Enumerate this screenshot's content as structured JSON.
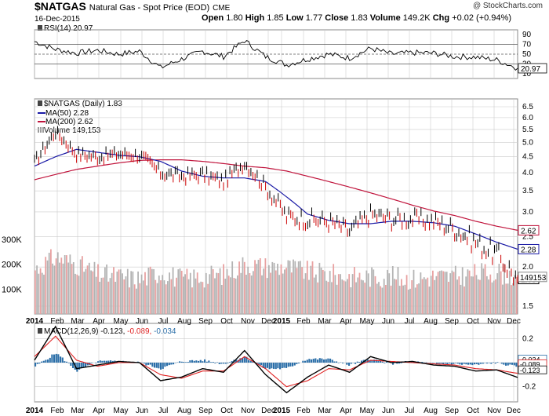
{
  "header": {
    "symbol": "$NATGAS",
    "name": "Natural Gas - Spot Price (EOD)",
    "exchange": "CME",
    "date": "16-Dec-2015",
    "copyright": "@ StockCharts.com",
    "open_label": "Open",
    "open": "1.80",
    "high_label": "High",
    "high": "1.85",
    "low_label": "Low",
    "low": "1.77",
    "close_label": "Close",
    "close": "1.83",
    "volume_label": "Volume",
    "volume": "149.2K",
    "chg_label": "Chg",
    "chg": "+0.02 (+0.94%)"
  },
  "rsi_panel": {
    "label": "RSI(14) 20.97",
    "current": "20.97",
    "ticks": [
      "90",
      "70",
      "50",
      "30",
      "10"
    ]
  },
  "price_panel": {
    "legend_title": "$NATGAS (Daily) 1.83",
    "ma50_label": "MA(50) 2.28",
    "ma200_label": "MA(200) 2.62",
    "volume_label": "Volume 149,153",
    "ticks": [
      "6.5",
      "6.0",
      "5.5",
      "5.0",
      "4.5",
      "4.0",
      "3.5",
      "3.0",
      "2.5",
      "2.0",
      "1.5"
    ],
    "volume_ticks": [
      "300K",
      "200K",
      "100K"
    ],
    "badges": {
      "ma200": "2.62",
      "ma50": "2.28",
      "volume": "149153",
      "close": "1.83"
    }
  },
  "macd_panel": {
    "label_prefix": "MACD(12,26,9)",
    "macd_value": "-0.123,",
    "signal_value": "-0.089,",
    "hist_value": "-0.034",
    "ticks": [
      "0.2",
      "0.0",
      "-0.2"
    ],
    "badges": {
      "hist": "-0.034",
      "signal": "-0.089",
      "macd": "-0.123"
    }
  },
  "x_axis_labels": [
    "2014",
    "Feb",
    "Mar",
    "Apr",
    "May",
    "Jun",
    "Jul",
    "Aug",
    "Sep",
    "Oct",
    "Nov",
    "Dec",
    "2015",
    "Feb",
    "Mar",
    "Apr",
    "May",
    "Jun",
    "Jul",
    "Aug",
    "Sep",
    "Oct",
    "Nov",
    "Dec"
  ],
  "colors": {
    "up": "#000000",
    "down": "#cc0000",
    "ma50": "#1a1aa6",
    "ma200": "#c0143c",
    "volume_up": "#b3b3b3",
    "volume_down": "#e8a0a0",
    "macd_line": "#000000",
    "signal_line": "#e02020",
    "histogram": "#2a6ea8",
    "grid": "#cccccc",
    "rsi_fill_low": "#a84a8c"
  },
  "chart_data": [
    {
      "type": "line",
      "title": "RSI(14) 20.97",
      "x_range": [
        "2014-01-02",
        "2015-12-16"
      ],
      "ylim": [
        0,
        100
      ],
      "reference_lines": [
        70,
        50,
        30
      ],
      "x": [
        "2014-01",
        "2014-02",
        "2014-03",
        "2014-04",
        "2014-05",
        "2014-06",
        "2014-07",
        "2014-08",
        "2014-09",
        "2014-10",
        "2014-11",
        "2014-12",
        "2015-01",
        "2015-02",
        "2015-03",
        "2015-04",
        "2015-05",
        "2015-06",
        "2015-07",
        "2015-08",
        "2015-09",
        "2015-10",
        "2015-11",
        "2015-12-16"
      ],
      "series": [
        {
          "name": "RSI(14)",
          "values": [
            76,
            60,
            52,
            58,
            50,
            56,
            22,
            40,
            56,
            45,
            78,
            45,
            28,
            40,
            50,
            42,
            62,
            50,
            53,
            52,
            45,
            44,
            38,
            21
          ]
        }
      ]
    },
    {
      "type": "line",
      "title": "$NATGAS (Daily) 1.83",
      "x_range": [
        "2014-01-02",
        "2015-12-16"
      ],
      "ylim": [
        1.5,
        6.5
      ],
      "y_scale": "log",
      "x": [
        "2014-01",
        "2014-02",
        "2014-03",
        "2014-04",
        "2014-05",
        "2014-06",
        "2014-07",
        "2014-08",
        "2014-09",
        "2014-10",
        "2014-11",
        "2014-12",
        "2015-01",
        "2015-02",
        "2015-03",
        "2015-04",
        "2015-05",
        "2015-06",
        "2015-07",
        "2015-08",
        "2015-09",
        "2015-10",
        "2015-11",
        "2015-12-16"
      ],
      "series": [
        {
          "name": "$NATGAS",
          "values": [
            4.3,
            5.4,
            4.6,
            4.5,
            4.6,
            4.55,
            4.0,
            3.9,
            3.95,
            3.75,
            4.3,
            3.6,
            2.9,
            2.85,
            2.8,
            2.6,
            2.95,
            2.85,
            2.85,
            2.8,
            2.65,
            2.4,
            2.2,
            1.83
          ]
        },
        {
          "name": "MA(50) 2.28",
          "values": [
            4.2,
            4.5,
            4.75,
            4.65,
            4.55,
            4.5,
            4.35,
            4.05,
            3.9,
            3.85,
            3.85,
            3.75,
            3.35,
            2.95,
            2.82,
            2.75,
            2.75,
            2.8,
            2.8,
            2.77,
            2.7,
            2.55,
            2.4,
            2.28
          ]
        },
        {
          "name": "MA(200) 2.62",
          "values": [
            3.8,
            3.95,
            4.1,
            4.2,
            4.3,
            4.38,
            4.4,
            4.4,
            4.35,
            4.28,
            4.2,
            4.15,
            4.05,
            3.9,
            3.75,
            3.6,
            3.45,
            3.3,
            3.15,
            3.02,
            2.92,
            2.8,
            2.7,
            2.62
          ]
        }
      ]
    },
    {
      "type": "bar",
      "title": "Volume 149,153",
      "ylim": [
        0,
        300000
      ],
      "x": [
        "2014-01",
        "2014-02",
        "2014-03",
        "2014-04",
        "2014-05",
        "2014-06",
        "2014-07",
        "2014-08",
        "2014-09",
        "2014-10",
        "2014-11",
        "2014-12",
        "2015-01",
        "2015-02",
        "2015-03",
        "2015-04",
        "2015-05",
        "2015-06",
        "2015-07",
        "2015-08",
        "2015-09",
        "2015-10",
        "2015-11",
        "2015-12-16"
      ],
      "values": [
        180000,
        230000,
        200000,
        160000,
        150000,
        140000,
        170000,
        140000,
        150000,
        160000,
        200000,
        190000,
        190000,
        170000,
        160000,
        150000,
        150000,
        150000,
        140000,
        150000,
        150000,
        160000,
        170000,
        149153
      ]
    },
    {
      "type": "line",
      "title": "MACD(12,26,9) -0.123, -0.089, -0.034",
      "ylim": [
        -0.3,
        0.3
      ],
      "x": [
        "2014-01",
        "2014-02",
        "2014-03",
        "2014-04",
        "2014-05",
        "2014-06",
        "2014-07",
        "2014-08",
        "2014-09",
        "2014-10",
        "2014-11",
        "2014-12",
        "2015-01",
        "2015-02",
        "2015-03",
        "2015-04",
        "2015-05",
        "2015-06",
        "2015-07",
        "2015-08",
        "2015-09",
        "2015-10",
        "2015-11",
        "2015-12-16"
      ],
      "series": [
        {
          "name": "MACD",
          "values": [
            0.02,
            0.3,
            -0.05,
            -0.02,
            0.01,
            0.0,
            -0.15,
            -0.12,
            -0.05,
            -0.08,
            0.1,
            -0.1,
            -0.25,
            -0.12,
            -0.02,
            -0.08,
            0.05,
            0.0,
            0.01,
            -0.02,
            -0.03,
            -0.07,
            -0.06,
            -0.123
          ]
        },
        {
          "name": "Signal",
          "values": [
            0.05,
            0.22,
            0.02,
            -0.03,
            0.0,
            0.0,
            -0.1,
            -0.13,
            -0.07,
            -0.07,
            0.05,
            -0.05,
            -0.2,
            -0.15,
            -0.05,
            -0.06,
            0.02,
            0.01,
            0.0,
            -0.01,
            -0.02,
            -0.05,
            -0.06,
            -0.089
          ]
        },
        {
          "name": "Histogram",
          "values": [
            -0.03,
            0.08,
            -0.07,
            0.01,
            0.01,
            0.0,
            -0.05,
            0.01,
            0.02,
            -0.01,
            0.05,
            -0.05,
            -0.05,
            0.03,
            0.03,
            -0.02,
            0.03,
            -0.01,
            0.01,
            -0.01,
            -0.01,
            -0.02,
            0.0,
            -0.034
          ]
        }
      ]
    }
  ]
}
